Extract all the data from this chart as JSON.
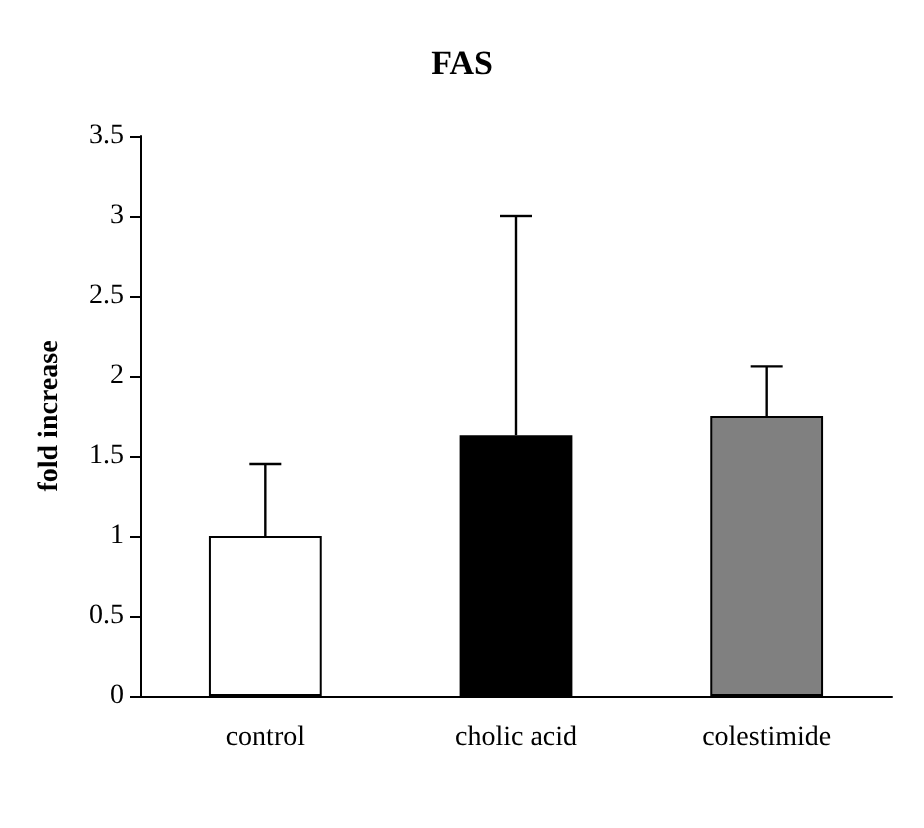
{
  "chart_data": {
    "type": "bar",
    "title": "FAS",
    "ylabel": "fold increase",
    "categories": [
      "control",
      "cholic acid",
      "colestimide"
    ],
    "values": [
      1.0,
      1.63,
      1.75
    ],
    "errors": [
      [
        1.0,
        1.45
      ],
      [
        1.63,
        3.0
      ],
      [
        1.75,
        2.06
      ]
    ],
    "colors": [
      "#ffffff",
      "#000000",
      "#808080"
    ],
    "ylim": [
      0,
      3.5
    ],
    "yticks": [
      0,
      0.5,
      1,
      1.5,
      2,
      2.5,
      3,
      3.5
    ],
    "grid": false
  }
}
